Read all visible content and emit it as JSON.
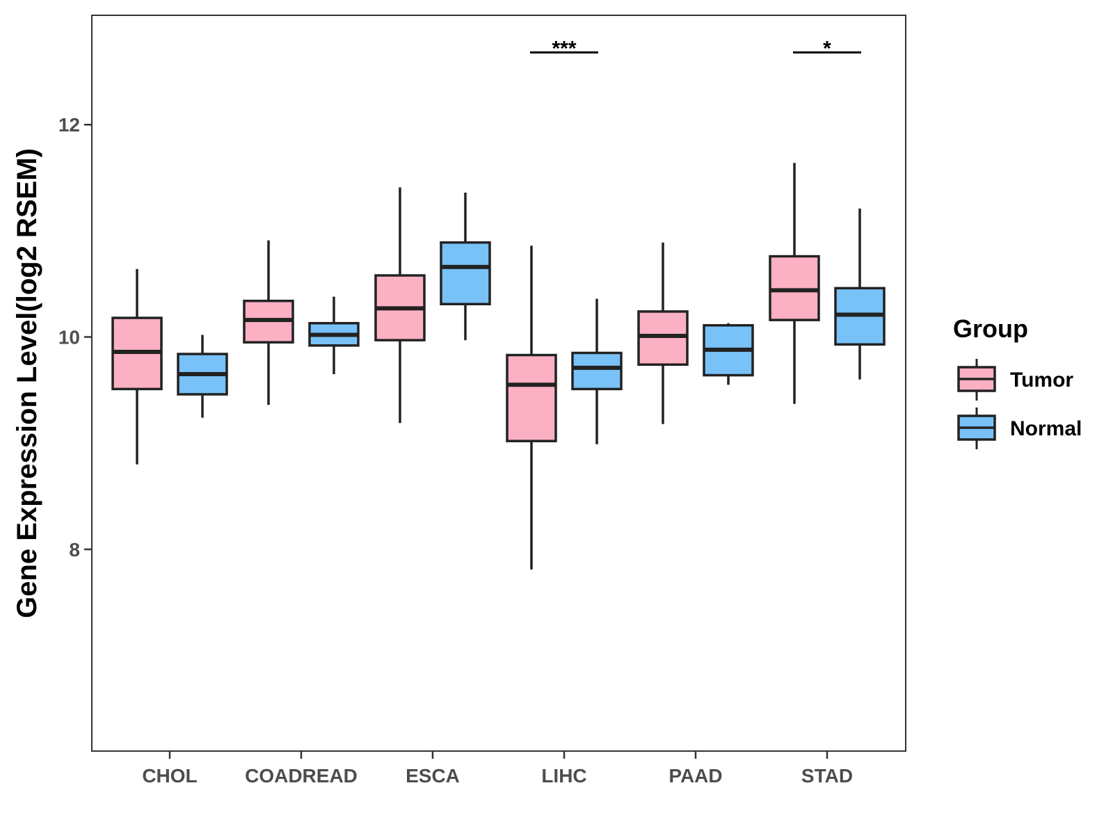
{
  "chart_data": {
    "type": "boxplot",
    "title": "",
    "xlabel": "",
    "ylabel": "Gene Expression Level(log2 RSEM)",
    "ylim": [
      6.1,
      13.03
    ],
    "yticks": [
      8,
      10,
      12
    ],
    "grid": false,
    "legend": {
      "title": "Group",
      "position": "right"
    },
    "categories": [
      "CHOL",
      "COADREAD",
      "ESCA",
      "LIHC",
      "PAAD",
      "STAD"
    ],
    "series": [
      {
        "name": "Tumor",
        "color": "#FBB1C3",
        "boxes": [
          {
            "min": 8.8,
            "q1": 9.51,
            "median": 9.86,
            "q3": 10.18,
            "max": 10.64
          },
          {
            "min": 9.36,
            "q1": 9.95,
            "median": 10.16,
            "q3": 10.34,
            "max": 10.91
          },
          {
            "min": 9.19,
            "q1": 9.97,
            "median": 10.27,
            "q3": 10.58,
            "max": 11.41
          },
          {
            "min": 7.81,
            "q1": 9.02,
            "median": 9.55,
            "q3": 9.83,
            "max": 10.86
          },
          {
            "min": 9.18,
            "q1": 9.74,
            "median": 10.01,
            "q3": 10.24,
            "max": 10.89
          },
          {
            "min": 9.37,
            "q1": 10.16,
            "median": 10.44,
            "q3": 10.76,
            "max": 11.64
          }
        ]
      },
      {
        "name": "Normal",
        "color": "#78C2F8",
        "boxes": [
          {
            "min": 9.24,
            "q1": 9.46,
            "median": 9.65,
            "q3": 9.84,
            "max": 10.02
          },
          {
            "min": 9.65,
            "q1": 9.92,
            "median": 10.02,
            "q3": 10.13,
            "max": 10.38
          },
          {
            "min": 9.97,
            "q1": 10.31,
            "median": 10.66,
            "q3": 10.89,
            "max": 11.36
          },
          {
            "min": 8.99,
            "q1": 9.51,
            "median": 9.71,
            "q3": 9.85,
            "max": 10.36
          },
          {
            "min": 9.55,
            "q1": 9.64,
            "median": 9.88,
            "q3": 10.11,
            "max": 10.13
          },
          {
            "min": 9.6,
            "q1": 9.93,
            "median": 10.21,
            "q3": 10.46,
            "max": 11.21
          }
        ]
      }
    ],
    "annotations": [
      {
        "category": "LIHC",
        "label": "***",
        "y": 12.68
      },
      {
        "category": "STAD",
        "label": "*",
        "y": 12.68
      }
    ]
  }
}
